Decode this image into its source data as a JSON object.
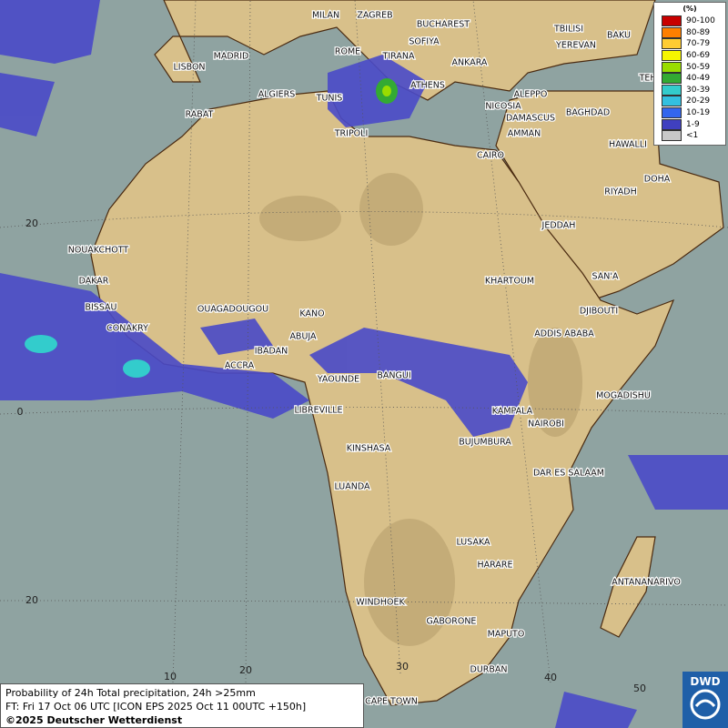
{
  "legend": {
    "title": "(%)",
    "items": [
      {
        "label": "90-100",
        "color": "#c80000"
      },
      {
        "label": "80-89",
        "color": "#ff7f00"
      },
      {
        "label": "70-79",
        "color": "#ffcc33"
      },
      {
        "label": "60-69",
        "color": "#f5f500"
      },
      {
        "label": "50-59",
        "color": "#99dd00"
      },
      {
        "label": "40-49",
        "color": "#33aa33"
      },
      {
        "label": "30-39",
        "color": "#33cccc"
      },
      {
        "label": "20-29",
        "color": "#33c0e0"
      },
      {
        "label": "10-19",
        "color": "#3366ee"
      },
      {
        "label": "1-9",
        "color": "#4040c0"
      },
      {
        "label": "<1",
        "color": "#c8c8c8"
      }
    ]
  },
  "cities": [
    "MILAN",
    "ZAGREB",
    "BUCHAREST",
    "SOFIYA",
    "MADRID",
    "ROME",
    "TIRANA",
    "ANKARA",
    "TBILISI",
    "BAKU",
    "YEREVAN",
    "TEHRAN",
    "LISBON",
    "ALGIERS",
    "TUNIS",
    "ATHENS",
    "ALEPPO",
    "NICOSIA",
    "DAMASCUS",
    "BAGHDAD",
    "AMMAN",
    "RABAT",
    "TRIPOLI",
    "HAWALLI",
    "CAIRO",
    "DOHA",
    "RIYADH",
    "JEDDAH",
    "NOUAKCHOTT",
    "DAKAR",
    "SAN'A",
    "KHARTOUM",
    "BISSAU",
    "OUAGADOUGOU",
    "DJIBOUTI",
    "KANO",
    "CONAKRY",
    "ADDIS ABABA",
    "ABUJA",
    "IBADAN",
    "ACCRA",
    "YAOUNDE",
    "BANGUI",
    "MOGADISHU",
    "LIBREVILLE",
    "KAMPALA",
    "NAIROBI",
    "KINSHASA",
    "BUJUMBURA",
    "DAR ES SALAAM",
    "LUANDA",
    "LUSAKA",
    "HARARE",
    "ANTANANARIVO",
    "WINDHOEK",
    "GABORONE",
    "MAPUTO",
    "DURBAN",
    "CAPE TOWN"
  ],
  "graticule_labels": [
    "20",
    "0",
    "20",
    "10",
    "20",
    "30",
    "40",
    "50"
  ],
  "caption": [
    "Probability of 24h Total precipitation, 24h >25mm",
    "FT: Fri 17 Oct 06 UTC [ICON EPS 2025 Oct 11 00UTC +150h]",
    "©2025 Deutscher Wetterdienst"
  ],
  "logo": "DWD"
}
